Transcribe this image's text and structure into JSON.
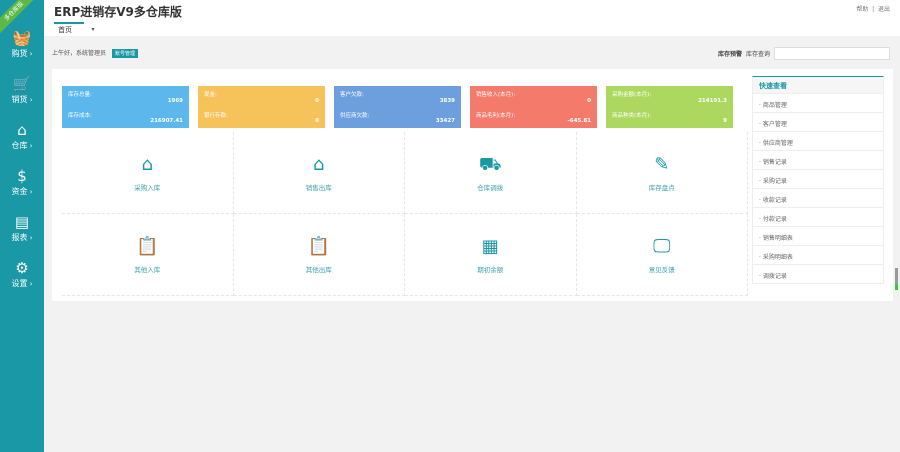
{
  "app": {
    "title": "ERP进销存V9多仓库版",
    "ribbon": "多仓库版",
    "top_links": [
      "帮助",
      "退出"
    ]
  },
  "sidebar": [
    {
      "icon": "basket-icon",
      "label": "购货"
    },
    {
      "icon": "cart-icon",
      "label": "销货"
    },
    {
      "icon": "home-icon",
      "label": "仓库"
    },
    {
      "icon": "dollar-icon",
      "label": "资金"
    },
    {
      "icon": "report-icon",
      "label": "报表"
    },
    {
      "icon": "gear-icon",
      "label": "设置"
    }
  ],
  "tabs": [
    {
      "label": "首页"
    }
  ],
  "greeting": {
    "text": "上午好，系统管理员",
    "badge": "账号管理"
  },
  "search": {
    "alert": "库存预警",
    "label": "库存查询",
    "placeholder": ""
  },
  "colors": {
    "accent": "#1a98a6",
    "card1": "#5bb7ec",
    "card2": "#f6c25a",
    "card3": "#6d9fdf",
    "card4": "#f47a6c",
    "card5": "#acd860"
  },
  "cards": [
    {
      "l1": "库存总量:",
      "v1": "1969",
      "l2": "库存成本:",
      "v2": "216907.41"
    },
    {
      "l1": "现金:",
      "v1": "0",
      "l2": "银行存款:",
      "v2": "0"
    },
    {
      "l1": "客户欠款:",
      "v1": "3839",
      "l2": "供应商欠款:",
      "v2": "33427"
    },
    {
      "l1": "销售收入(本月):",
      "v1": "0",
      "l2": "商品毛利(本月):",
      "v2": "-645.81"
    },
    {
      "l1": "采购金额(本月):",
      "v1": "214191.3",
      "l2": "商品种类(本月):",
      "v2": "9"
    }
  ],
  "tiles": [
    {
      "icon": "house-in-icon",
      "label": "采购入库"
    },
    {
      "icon": "house-out-icon",
      "label": "销售出库"
    },
    {
      "icon": "truck-icon",
      "label": "仓库调拨"
    },
    {
      "icon": "inventory-edit-icon",
      "label": "库存盘点"
    },
    {
      "icon": "clipboard-in-icon",
      "label": "其他入库"
    },
    {
      "icon": "clipboard-out-icon",
      "label": "其他出库"
    },
    {
      "icon": "cabinet-icon",
      "label": "期初余额"
    },
    {
      "icon": "monitor-icon",
      "label": "意见反馈"
    }
  ],
  "quick": {
    "title": "快速查看",
    "items": [
      "商品管理",
      "客户管理",
      "供应商管理",
      "销售记录",
      "采购记录",
      "收款记录",
      "付款记录",
      "销售明细表",
      "采购明细表",
      "调拨记录"
    ]
  }
}
